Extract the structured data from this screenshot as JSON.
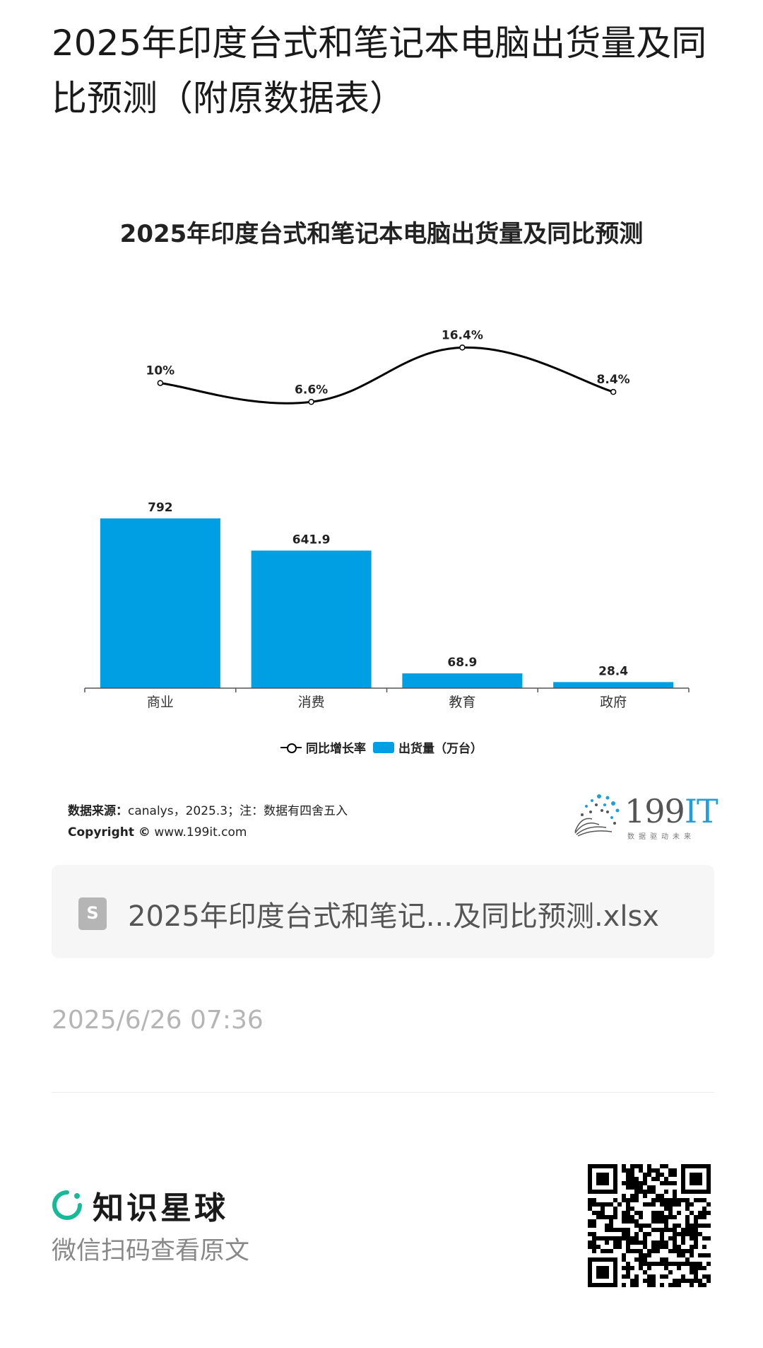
{
  "page": {
    "title": "2025年印度台式和笔记本电脑出货量及同比预测（附原数据表）"
  },
  "chart_data": {
    "type": "bar",
    "title": "2025年印度台式和笔记本电脑出货量及同比预测",
    "categories": [
      "商业",
      "消费",
      "教育",
      "政府"
    ],
    "series": [
      {
        "name": "出货量（万台）",
        "type": "bar",
        "values": [
          792,
          641.9,
          68.9,
          28.4
        ],
        "labels": [
          "792",
          "641.9",
          "68.9",
          "28.4"
        ],
        "color": "#009fe3"
      },
      {
        "name": "同比增长率",
        "type": "line",
        "values": [
          10,
          6.6,
          16.4,
          8.4
        ],
        "labels": [
          "10%",
          "6.6%",
          "16.4%",
          "8.4%"
        ],
        "color": "#000000"
      }
    ],
    "grid": false,
    "legend_position": "bottom"
  },
  "source": {
    "label": "数据来源：",
    "text": "canalys，2025.3；注：数据有四舍五入",
    "copyright_label": "Copyright ©",
    "copyright_text": "www.199it.com"
  },
  "logo": {
    "text_main": "199",
    "text_accent": "IT",
    "tagline": "数据驱动未来",
    "accent_color": "#1aa0e0"
  },
  "file": {
    "name": "2025年印度台式和笔记...及同比预测.xlsx",
    "icon": "spreadsheet-icon"
  },
  "timestamp": "2025/6/26 07:36",
  "footer": {
    "brand_name": "知识星球",
    "hint": "微信扫码查看原文",
    "brand_color": "#16b998"
  }
}
